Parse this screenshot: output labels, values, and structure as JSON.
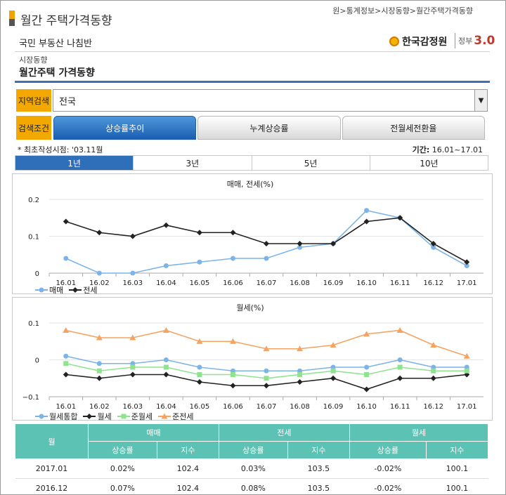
{
  "header": {
    "title": "월간 주택가격동향",
    "breadcrumb": "원>통계정보>시장동향>월간주택가격동향",
    "site_name": "국민 부동산 나침반",
    "org_name": "한국감정원",
    "gov_text": "정부",
    "gov_num": "3.0"
  },
  "section": {
    "category": "시장동향",
    "title": "월간주택 가격동향"
  },
  "filters": {
    "region_label": "지역검색",
    "region_value": "전국",
    "condition_label": "검색조건",
    "tabs": [
      "상승률추이",
      "누계상승률",
      "전월세전환율"
    ]
  },
  "info": {
    "note": "* 최초작성시점: '03.11월",
    "period_label": "기간:",
    "period_value": "16.01~17.01"
  },
  "range_tabs": [
    "1년",
    "3년",
    "5년",
    "10년"
  ],
  "colors": {
    "blue": "#7cb4e8",
    "black": "#222222",
    "green": "#8fe38f",
    "orange": "#f4a460",
    "accent": "#3d6fb6",
    "table_head": "#5cc2b4"
  },
  "chart_data": [
    {
      "type": "line",
      "title": "매매, 전세(%)",
      "categories": [
        "16.01",
        "16.02",
        "16.03",
        "16.04",
        "16.05",
        "16.06",
        "16.07",
        "16.08",
        "16.09",
        "16.10",
        "16.11",
        "16.12",
        "17.01"
      ],
      "y_ticks": [
        "0.2",
        "0.1",
        "0"
      ],
      "ylim": [
        0,
        0.2
      ],
      "series": [
        {
          "name": "매매",
          "color": "#7cb4e8",
          "marker": "circle",
          "values": [
            0.04,
            0.0,
            0.0,
            0.02,
            0.03,
            0.04,
            0.04,
            0.07,
            0.08,
            0.17,
            0.15,
            0.07,
            0.02
          ]
        },
        {
          "name": "전세",
          "color": "#222222",
          "marker": "diamond",
          "values": [
            0.14,
            0.11,
            0.1,
            0.13,
            0.11,
            0.11,
            0.08,
            0.08,
            0.08,
            0.14,
            0.15,
            0.08,
            0.03
          ]
        }
      ]
    },
    {
      "type": "line",
      "title": "월세(%)",
      "categories": [
        "16.01",
        "16.02",
        "16.03",
        "16.04",
        "16.05",
        "16.06",
        "16.07",
        "16.08",
        "16.09",
        "16.10",
        "16.11",
        "16.12",
        "17.01"
      ],
      "y_ticks": [
        "0.1",
        "0",
        "−0.1"
      ],
      "ylim": [
        -0.1,
        0.1
      ],
      "series": [
        {
          "name": "월세통합",
          "color": "#7cb4e8",
          "marker": "circle",
          "values": [
            0.01,
            -0.01,
            -0.01,
            0.0,
            -0.02,
            -0.03,
            -0.03,
            -0.03,
            -0.02,
            -0.02,
            0.0,
            -0.02,
            -0.02
          ]
        },
        {
          "name": "월세",
          "color": "#222222",
          "marker": "diamond",
          "values": [
            -0.04,
            -0.05,
            -0.04,
            -0.04,
            -0.06,
            -0.07,
            -0.07,
            -0.06,
            -0.05,
            -0.08,
            -0.05,
            -0.05,
            -0.04
          ]
        },
        {
          "name": "준월세",
          "color": "#8fe38f",
          "marker": "square",
          "values": [
            -0.01,
            -0.03,
            -0.02,
            -0.02,
            -0.04,
            -0.04,
            -0.05,
            -0.04,
            -0.03,
            -0.04,
            -0.02,
            -0.03,
            -0.03
          ]
        },
        {
          "name": "준전세",
          "color": "#f4a460",
          "marker": "triangle",
          "values": [
            0.08,
            0.06,
            0.06,
            0.08,
            0.05,
            0.05,
            0.03,
            0.03,
            0.04,
            0.07,
            0.08,
            0.04,
            0.01
          ]
        }
      ]
    }
  ],
  "table": {
    "month_header": "월",
    "groups": [
      "매매",
      "전세",
      "월세"
    ],
    "subheaders": [
      "상승률",
      "지수",
      "상승률",
      "지수",
      "상승률",
      "지수"
    ],
    "rows": [
      {
        "month": "2017.01",
        "sale_rate": "0.02%",
        "sale_index": "102.4",
        "jeonse_rate": "0.03%",
        "jeonse_index": "103.5",
        "rent_rate": "-0.02%",
        "rent_index": "100.1"
      },
      {
        "month": "2016.12",
        "sale_rate": "0.07%",
        "sale_index": "102.4",
        "jeonse_rate": "0.08%",
        "jeonse_index": "103.5",
        "rent_rate": "-0.02%",
        "rent_index": "100.1"
      }
    ]
  }
}
